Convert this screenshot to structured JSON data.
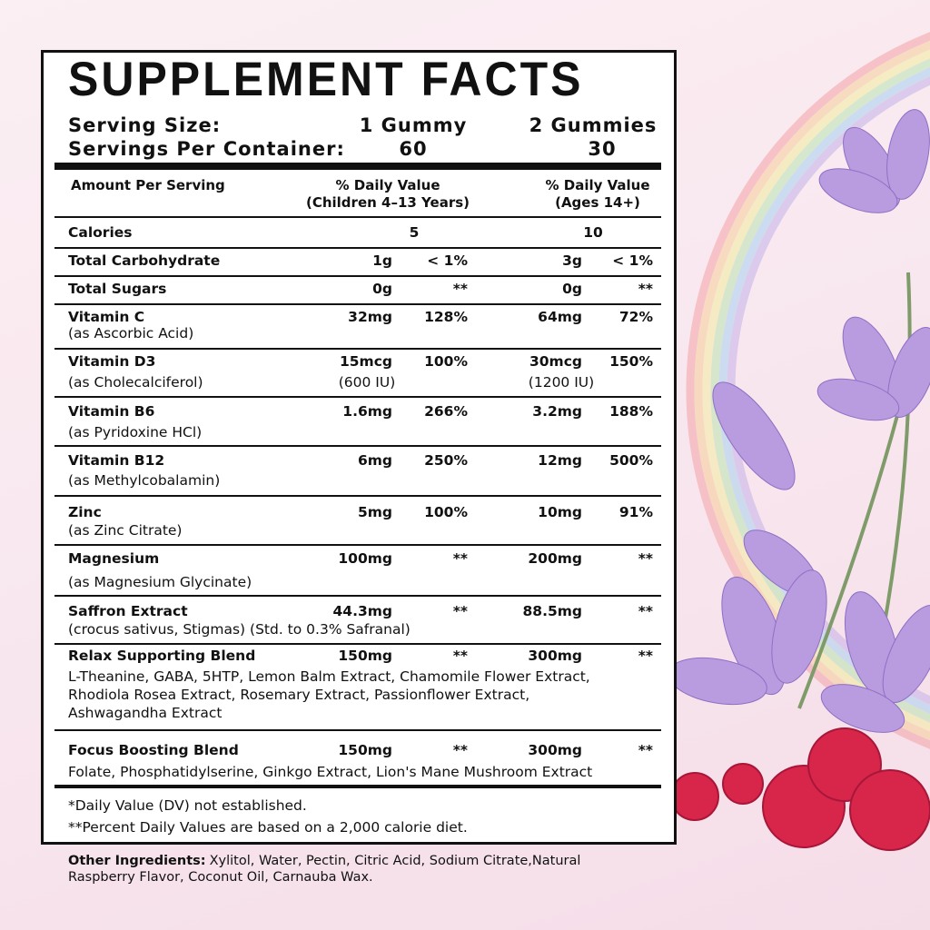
{
  "title": "SUPPLEMENT FACTS",
  "serving_size": {
    "label": "Serving Size:",
    "children": "1 Gummy",
    "adults": "2 Gummies"
  },
  "servings_per_container": {
    "label": "Servings Per Container:",
    "children": "60",
    "adults": "30"
  },
  "header": {
    "amount": "Amount Per Serving",
    "children": [
      "% Daily Value",
      "(Children 4–13 Years)"
    ],
    "adults": [
      "% Daily Value",
      "(Ages 14+)"
    ]
  },
  "rows": [
    {
      "name": "Calories",
      "children": "5",
      "adults": "10"
    },
    {
      "name": "Total Carbohydrate",
      "children_amount": "1g",
      "children_dv": "< 1%",
      "adults_amount": "3g",
      "adults_dv": "< 1%"
    },
    {
      "name": "Total Sugars",
      "children_amount": "0g",
      "children_dv": "**",
      "adults_amount": "0g",
      "adults_dv": "**"
    },
    {
      "name": "Vitamin C",
      "source": [
        "(as Ascorbic Acid)"
      ],
      "children_amount": "32mg",
      "children_dv": "128%",
      "adults_amount": "64mg",
      "adults_dv": "72%"
    },
    {
      "name": "Vitamin D3",
      "source": [
        "(as Cholecalciferol)"
      ],
      "children_amount": "15mcg",
      "children_amount_iu": "(600 IU)",
      "children_dv": "100%",
      "adults_amount": "30mcg",
      "adults_amount_iu": "(1200 IU)",
      "adults_dv": "150%"
    },
    {
      "name": "Vitamin B6",
      "source": [
        "(as Pyridoxine HCl)"
      ],
      "children_amount": "1.6mg",
      "children_dv": "266%",
      "adults_amount": "3.2mg",
      "adults_dv": "188%"
    },
    {
      "name": "Vitamin B12",
      "source": [
        "(as Methylcobalamin)"
      ],
      "children_amount": "6mg",
      "children_dv": "250%",
      "adults_amount": "12mg",
      "adults_dv": "500%"
    },
    {
      "name": "Zinc",
      "source": [
        "(as Zinc Citrate)"
      ],
      "children_amount": "5mg",
      "children_dv": "100%",
      "adults_amount": "10mg",
      "adults_dv": "91%"
    },
    {
      "name": "Magnesium",
      "source": [
        "(as Magnesium Glycinate)"
      ],
      "children_amount": "100mg",
      "children_dv": "**",
      "adults_amount": "200mg",
      "adults_dv": "**"
    },
    {
      "name": "Saffron Extract",
      "source": [
        "(crocus sativus, Stigmas) (Std. to 0.3% Safranal)"
      ],
      "children_amount": "44.3mg",
      "children_dv": "**",
      "adults_amount": "88.5mg",
      "adults_dv": "**"
    },
    {
      "name": "Relax Supporting Blend",
      "source": [
        "L-Theanine, GABA, 5HTP, Lemon Balm Extract, Chamomile Flower Extract,",
        "Rhodiola Rosea Extract, Rosemary Extract, Passionflower Extract,",
        "Ashwagandha Extract"
      ],
      "children_amount": "150mg",
      "children_dv": "**",
      "adults_amount": "300mg",
      "adults_dv": "**"
    },
    {
      "name": "Focus Boosting Blend",
      "source": [
        "Folate, Phosphatidylserine, Ginkgo Extract, Lion's Mane Mushroom Extract"
      ],
      "children_amount": "150mg",
      "children_dv": "**",
      "adults_amount": "300mg",
      "adults_dv": "**"
    }
  ],
  "footnotes": [
    "*Daily Value (DV) not established.",
    "**Percent Daily Values are based on a 2,000 calorie diet."
  ],
  "other_ingredients": {
    "label": "Other Ingredients:",
    "lines": [
      "Xylitol, Water, Pectin, Citric Acid, Sodium Citrate,Natural",
      "Raspberry Flavor, Coconut Oil, Carnauba Wax."
    ]
  }
}
